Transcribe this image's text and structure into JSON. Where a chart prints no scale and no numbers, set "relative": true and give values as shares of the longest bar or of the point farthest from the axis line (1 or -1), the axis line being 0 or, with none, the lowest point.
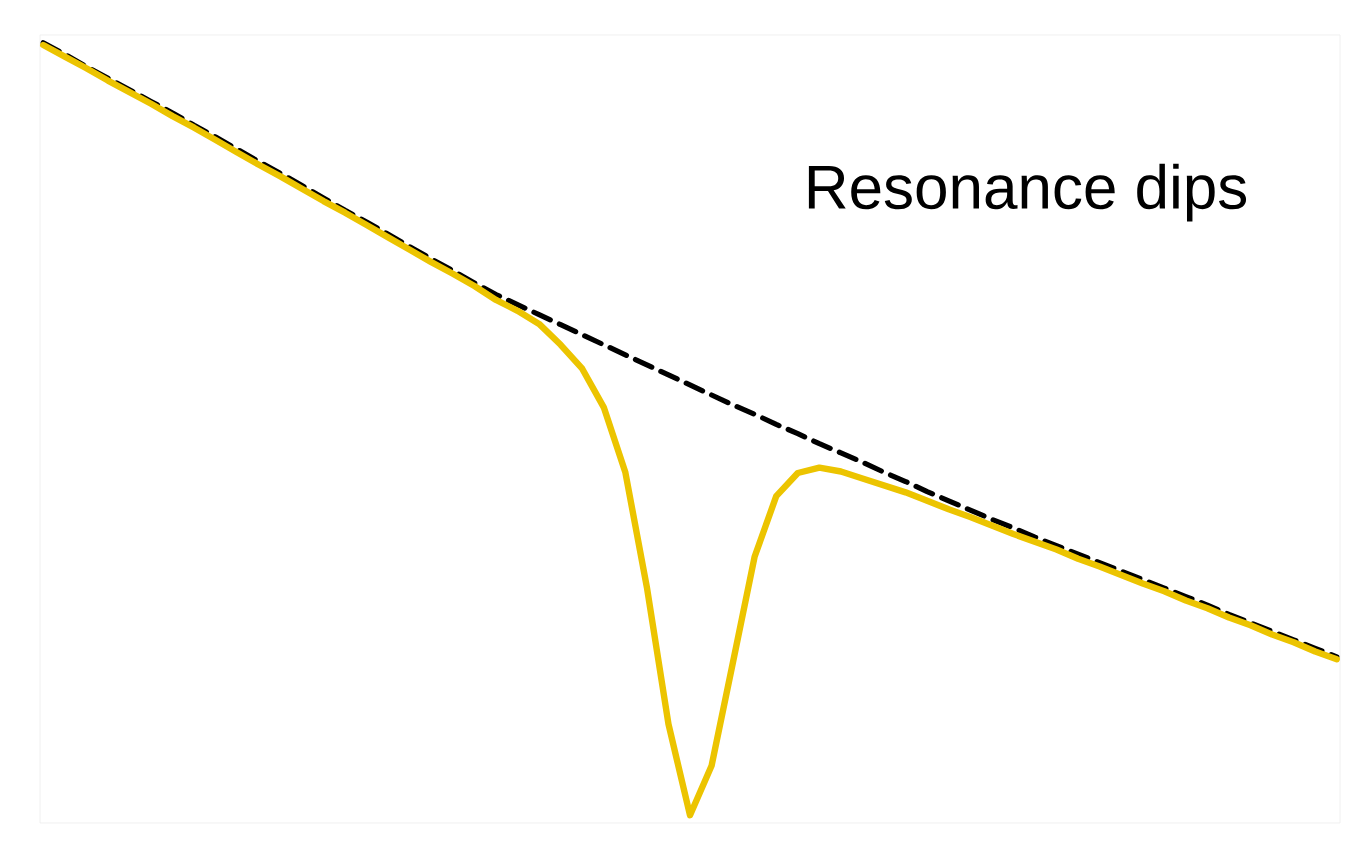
{
  "chart_data": {
    "type": "line",
    "relative": true,
    "tick_labels": false,
    "annotations": [
      "Resonance dips"
    ],
    "categories": [
      null,
      null,
      null,
      null,
      null,
      null,
      null,
      null,
      null,
      null,
      null,
      null,
      null,
      null,
      null,
      null,
      null,
      null,
      null,
      null,
      null,
      null,
      null,
      null,
      null,
      null,
      null,
      null,
      null,
      null,
      null,
      null,
      null,
      null,
      null,
      null,
      null,
      null,
      null,
      null,
      null,
      null,
      null,
      null,
      null,
      null,
      null,
      null,
      null,
      null,
      null,
      null,
      null,
      null,
      null,
      null,
      null,
      null,
      null,
      null,
      null
    ],
    "series": [
      {
        "color": "#000000",
        "line_style": "dashed",
        "values": [
          1.0,
          0.985,
          0.969,
          0.954,
          0.939,
          0.924,
          0.909,
          0.893,
          0.878,
          0.862,
          0.846,
          0.831,
          0.815,
          0.799,
          0.783,
          0.768,
          0.752,
          0.736,
          0.72,
          0.705,
          0.689,
          0.674,
          0.661,
          0.648,
          0.635,
          0.622,
          0.609,
          0.596,
          0.583,
          0.57,
          0.557,
          0.544,
          0.531,
          0.519,
          0.506,
          0.494,
          0.481,
          0.469,
          0.457,
          0.444,
          0.432,
          0.419,
          0.407,
          0.395,
          0.383,
          0.372,
          0.36,
          0.349,
          0.338,
          0.327,
          0.316,
          0.305,
          0.294,
          0.283,
          0.272,
          0.26,
          0.249,
          0.238,
          0.227,
          0.216,
          0.205
        ]
      },
      {
        "color": "#ecc400",
        "line_style": "solid",
        "values": [
          0.997,
          0.982,
          0.967,
          0.951,
          0.936,
          0.921,
          0.905,
          0.89,
          0.874,
          0.858,
          0.842,
          0.827,
          0.811,
          0.795,
          0.78,
          0.764,
          0.748,
          0.732,
          0.716,
          0.701,
          0.685,
          0.667,
          0.653,
          0.636,
          0.609,
          0.578,
          0.528,
          0.444,
          0.295,
          0.118,
          0,
          0.064,
          0.199,
          0.335,
          0.413,
          0.443,
          0.45,
          0.445,
          0.436,
          0.427,
          0.418,
          0.407,
          0.396,
          0.386,
          0.375,
          0.364,
          0.354,
          0.344,
          0.332,
          0.322,
          0.311,
          0.3,
          0.29,
          0.278,
          0.268,
          0.256,
          0.246,
          0.234,
          0.224,
          0.212,
          0.202
        ]
      }
    ]
  }
}
